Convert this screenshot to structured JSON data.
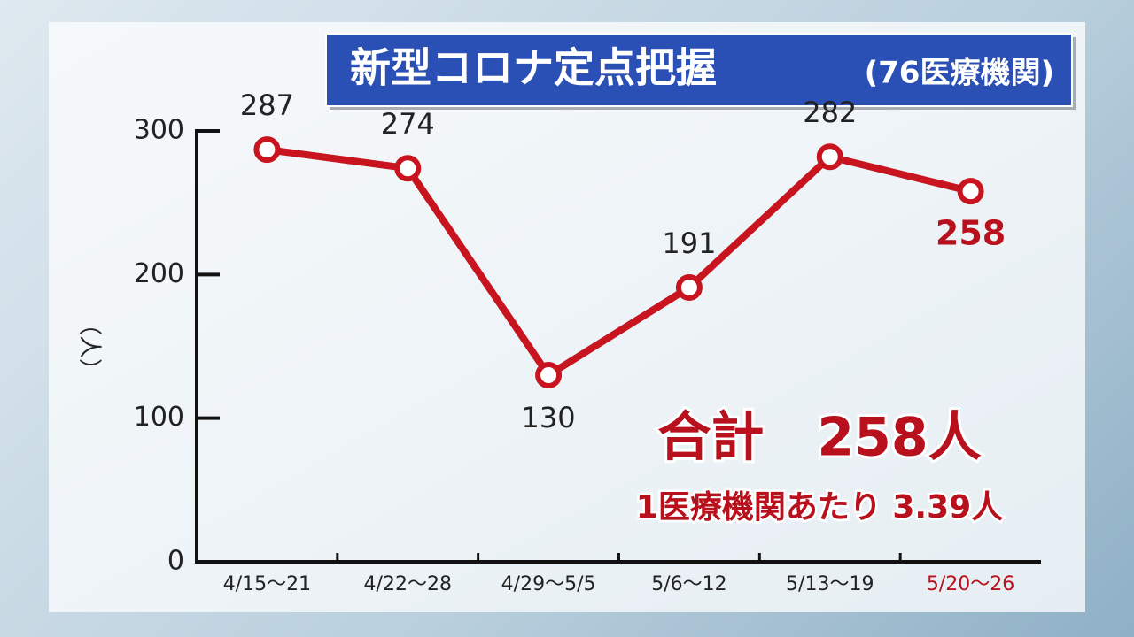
{
  "chart_data": {
    "type": "line",
    "title": "新型コロナ定点把握",
    "title_note": "(76医療機関)",
    "y_label": "（人）",
    "categories": [
      "4/15～21",
      "4/22～28",
      "4/29～5/5",
      "5/6～12",
      "5/13～19",
      "5/20～26"
    ],
    "series": [
      {
        "name": "定点把握",
        "color": "#c8141e",
        "values": [
          287,
          274,
          130,
          191,
          282,
          258
        ]
      }
    ],
    "highlight_color": "#b8101c",
    "ylim": [
      0,
      300
    ],
    "yticks": [
      0,
      100,
      200,
      300
    ],
    "annotations": [
      "合計　258人",
      "1医療機関あたり 3.39人"
    ]
  }
}
